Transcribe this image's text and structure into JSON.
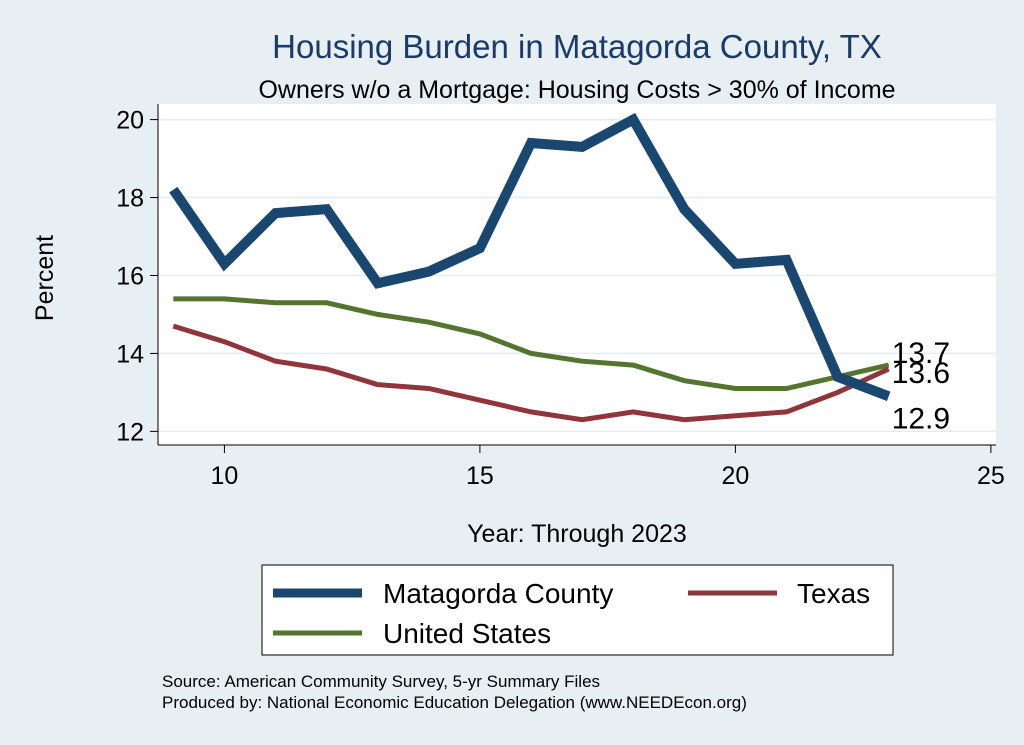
{
  "chart_data": {
    "type": "line",
    "title": "Housing Burden in Matagorda County, TX",
    "subtitle": "Owners w/o a Mortgage: Housing Costs > 30% of Income",
    "xlabel": "Year: Through 2023",
    "ylabel": "Percent",
    "xlim": [
      8.7,
      25.1
    ],
    "ylim": [
      11.65,
      20.4
    ],
    "xticks": [
      10,
      15,
      20,
      25
    ],
    "yticks": [
      12,
      14,
      16,
      18,
      20
    ],
    "grid": true,
    "legend_position": "bottom",
    "x": [
      9,
      10,
      11,
      12,
      13,
      14,
      15,
      16,
      17,
      18,
      19,
      20,
      21,
      22,
      23
    ],
    "series": [
      {
        "name": "Matagorda County",
        "color": "#1a476f",
        "values": [
          18.2,
          16.3,
          17.6,
          17.7,
          15.8,
          16.1,
          16.7,
          19.4,
          19.3,
          20.0,
          17.7,
          16.3,
          16.4,
          13.4,
          12.9
        ],
        "end_label": "12.9"
      },
      {
        "name": "Texas",
        "color": "#90353b",
        "values": [
          14.7,
          14.3,
          13.8,
          13.6,
          13.2,
          13.1,
          12.8,
          12.5,
          12.3,
          12.5,
          12.3,
          12.4,
          12.5,
          13.0,
          13.6
        ],
        "end_label": "13.6"
      },
      {
        "name": "United States",
        "color": "#55752f",
        "values": [
          15.4,
          15.4,
          15.3,
          15.3,
          15.0,
          14.8,
          14.5,
          14.0,
          13.8,
          13.7,
          13.3,
          13.1,
          13.1,
          13.4,
          13.7
        ],
        "end_label": "13.7"
      }
    ],
    "source": "Source: American Community Survey, 5-yr Summary Files",
    "produced_by": "Produced by: National Economic Education Delegation (www.NEEDEcon.org)"
  }
}
